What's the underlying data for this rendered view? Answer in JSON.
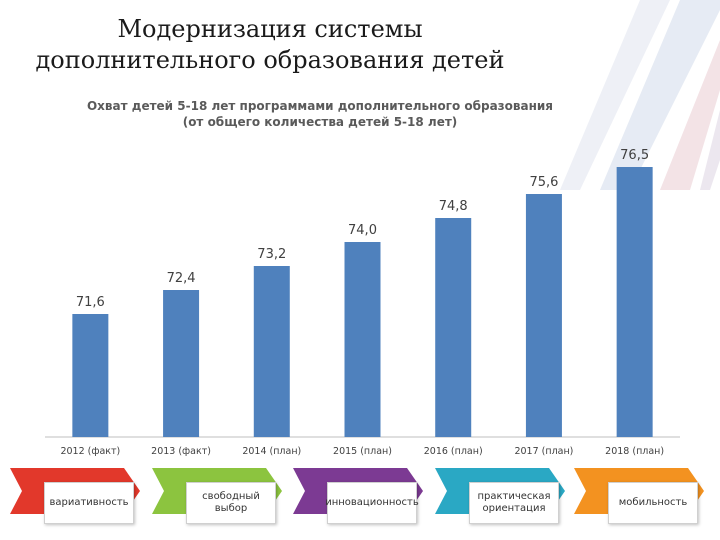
{
  "slide_title_line1": "Модернизация системы",
  "slide_title_line2": "дополнительного образования детей",
  "colors": {
    "bar": "#4f81bd",
    "step_red": "#e2382b",
    "step_green": "#8cc43f",
    "step_purple": "#7c3a93",
    "step_teal": "#2aa8c4",
    "step_orange": "#f39220"
  },
  "chart_data": {
    "type": "bar",
    "title_line1": "Охват детей 5-18 лет программами дополнительного образования",
    "title_line2": "(от общего количества детей 5-18 лет)",
    "categories": [
      "2012 (факт)",
      "2013 (факт)",
      "2014 (план)",
      "2015 (план)",
      "2016 (план)",
      "2017 (план)",
      "2018 (план)"
    ],
    "values": [
      71.6,
      72.4,
      73.2,
      74.0,
      74.8,
      75.6,
      76.5
    ],
    "data_labels": [
      "71,6",
      "72,4",
      "73,2",
      "74,0",
      "74,8",
      "75,6",
      "76,5"
    ],
    "ylim": [
      67.5,
      77.5
    ],
    "grid": false,
    "legend": "none"
  },
  "steps": [
    {
      "label": "вариативность",
      "color": "#e2382b",
      "icon": "red-arrow-icon"
    },
    {
      "label": "свободный выбор",
      "color": "#8cc43f",
      "icon": "green-arrow-icon"
    },
    {
      "label": "инновационность",
      "color": "#7c3a93",
      "icon": "purple-arrow-icon"
    },
    {
      "label": "практическая ориентация",
      "color": "#2aa8c4",
      "icon": "teal-arrow-icon"
    },
    {
      "label": "мобильность",
      "color": "#f39220",
      "icon": "orange-arrow-icon"
    }
  ]
}
